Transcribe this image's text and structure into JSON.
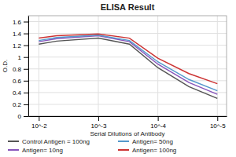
{
  "chart_data": {
    "type": "line",
    "title": "ELISA Result",
    "xlabel": "Serial Dilutions  of Antibody",
    "ylabel": "O.D.",
    "log": "x",
    "x": [
      0.01,
      0.005,
      0.001,
      0.0003,
      0.0001,
      3e-05,
      1e-05
    ],
    "xlim": [
      0.015,
      7e-06
    ],
    "xticks": [
      {
        "value": 0.01,
        "label": "10^-2"
      },
      {
        "value": 0.001,
        "label": "10^-3"
      },
      {
        "value": 0.0001,
        "label": "10^-4"
      },
      {
        "value": 1e-05,
        "label": "10^-5"
      }
    ],
    "ylim": [
      0,
      1.7
    ],
    "yticks": [
      0,
      0.2,
      0.4,
      0.6,
      0.8,
      1,
      1.2,
      1.4,
      1.6
    ],
    "grid": true,
    "legend": "bottom",
    "series": [
      {
        "name": "Control Antigen = 100ng",
        "color": "#555555",
        "values": [
          1.22,
          1.27,
          1.32,
          1.22,
          0.82,
          0.5,
          0.3
        ]
      },
      {
        "name": "Antigen= 10ng",
        "color": "#8855BB",
        "values": [
          1.26,
          1.31,
          1.36,
          1.26,
          0.88,
          0.57,
          0.37
        ]
      },
      {
        "name": "Antigen= 50ng",
        "color": "#5599CC",
        "values": [
          1.28,
          1.33,
          1.37,
          1.28,
          0.92,
          0.62,
          0.43
        ]
      },
      {
        "name": "Antigen= 100ng",
        "color": "#CC3333",
        "values": [
          1.32,
          1.36,
          1.39,
          1.32,
          0.98,
          0.72,
          0.55
        ]
      }
    ]
  }
}
